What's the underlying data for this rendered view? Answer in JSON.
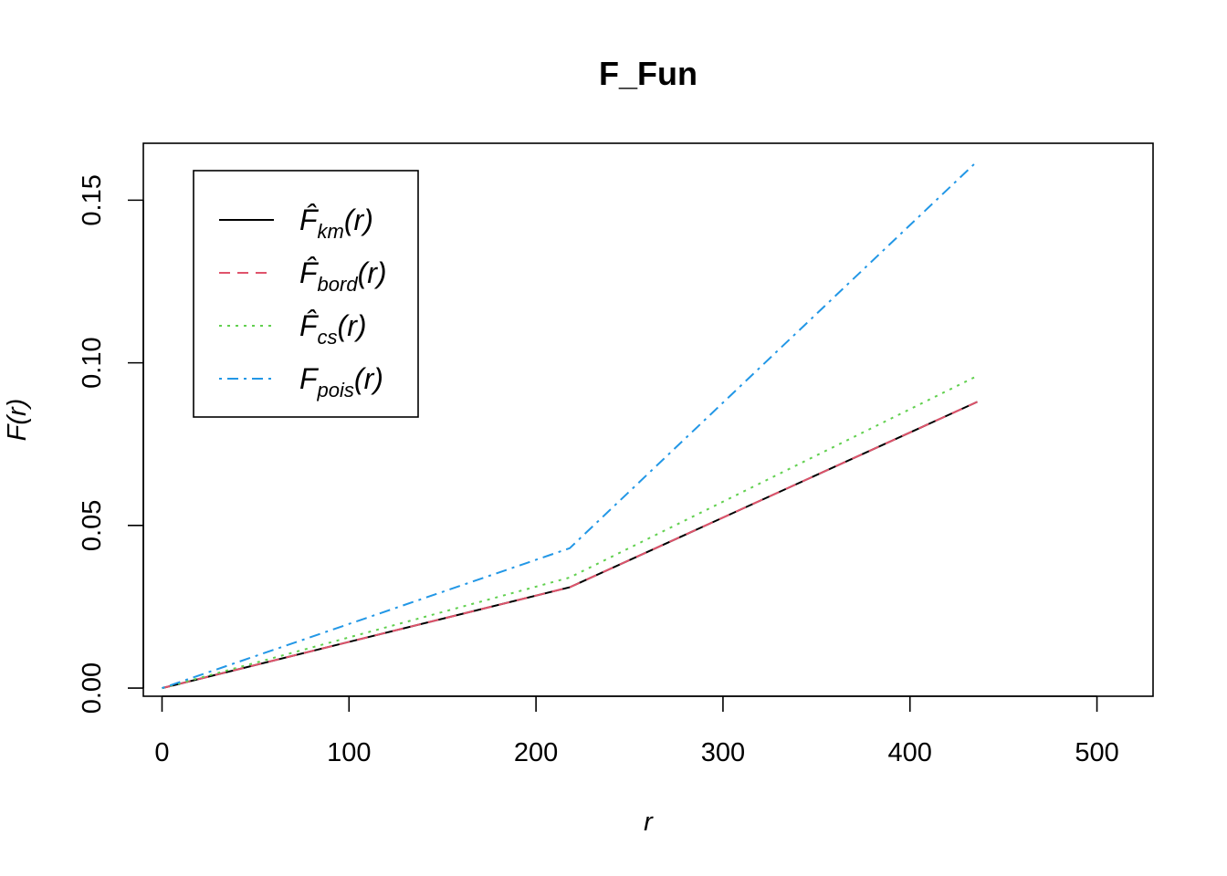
{
  "chart_data": {
    "type": "line",
    "title": "F_Fun",
    "xlabel": "r",
    "ylabel": "F(r)",
    "xlim": [
      -10,
      530
    ],
    "ylim": [
      -0.0025,
      0.1675
    ],
    "xticks": [
      0,
      100,
      200,
      300,
      400,
      500
    ],
    "xtick_labels": [
      "0",
      "100",
      "200",
      "300",
      "400",
      "500"
    ],
    "yticks": [
      0.0,
      0.05,
      0.1,
      0.15
    ],
    "ytick_labels": [
      "0.00",
      "0.05",
      "0.10",
      "0.15"
    ],
    "grid": false,
    "legend_position": "top-left",
    "series": [
      {
        "name": "F̂km(r)",
        "base": "F̂",
        "sub": "km",
        "arg": "(r)",
        "color": "#000000",
        "dash": "solid",
        "x": [
          0,
          218,
          436
        ],
        "y": [
          0.0,
          0.031,
          0.088
        ]
      },
      {
        "name": "F̂bord(r)",
        "base": "F̂",
        "sub": "bord",
        "arg": "(r)",
        "color": "#DF536B",
        "dash": "dashed",
        "x": [
          0,
          218,
          436
        ],
        "y": [
          0.0,
          0.031,
          0.088
        ]
      },
      {
        "name": "F̂cs(r)",
        "base": "F̂",
        "sub": "cs",
        "arg": "(r)",
        "color": "#61D04F",
        "dash": "dotted",
        "x": [
          0,
          218,
          436
        ],
        "y": [
          0.0,
          0.034,
          0.096
        ]
      },
      {
        "name": "Fpois(r)",
        "base": "F",
        "sub": "pois",
        "arg": "(r)",
        "color": "#2297E6",
        "dash": "dotdash",
        "x": [
          0,
          218,
          436
        ],
        "y": [
          0.0,
          0.043,
          0.162
        ]
      }
    ]
  }
}
